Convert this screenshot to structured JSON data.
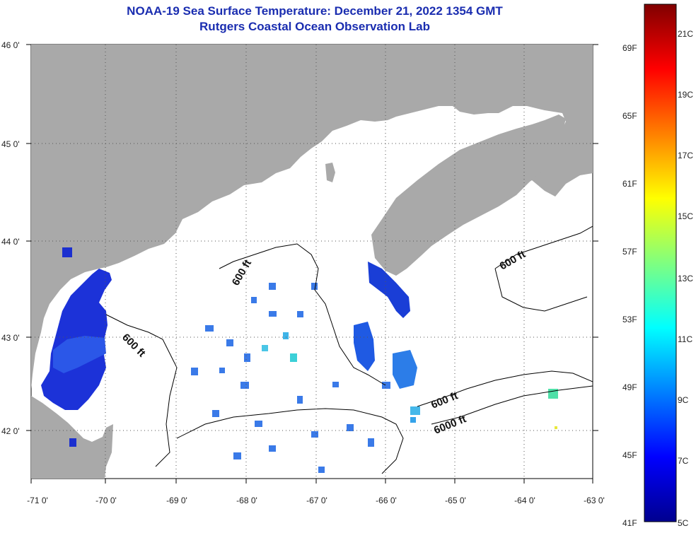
{
  "title": {
    "line1": "NOAA-19 Sea Surface Temperature:  December 21, 2022 1354 GMT",
    "line2": "Rutgers Coastal Ocean Observation Lab"
  },
  "axes": {
    "lon_labels": [
      "-71 0'",
      "-70 0'",
      "-69 0'",
      "-68 0'",
      "-67 0'",
      "-66 0'",
      "-65 0'",
      "-64 0'",
      "-63 0'"
    ],
    "lat_labels": [
      "46 0'",
      "45 0'",
      "44 0'",
      "43 0'",
      "42 0'"
    ]
  },
  "contours": [
    "600 ft",
    "600 ft",
    "600 ft",
    "600 ft",
    "6000 ft"
  ],
  "colorbar": {
    "fahrenheit": [
      "69F",
      "65F",
      "61F",
      "57F",
      "53F",
      "49F",
      "45F",
      "41F"
    ],
    "celsius": [
      "21C",
      "19C",
      "17C",
      "15C",
      "13C",
      "11C",
      "9C",
      "7C",
      "5C"
    ]
  },
  "colors": {
    "title": "#1a2db0",
    "land": "#a9a9a9",
    "water_nodata": "#ffffff",
    "grid": "#555555"
  }
}
